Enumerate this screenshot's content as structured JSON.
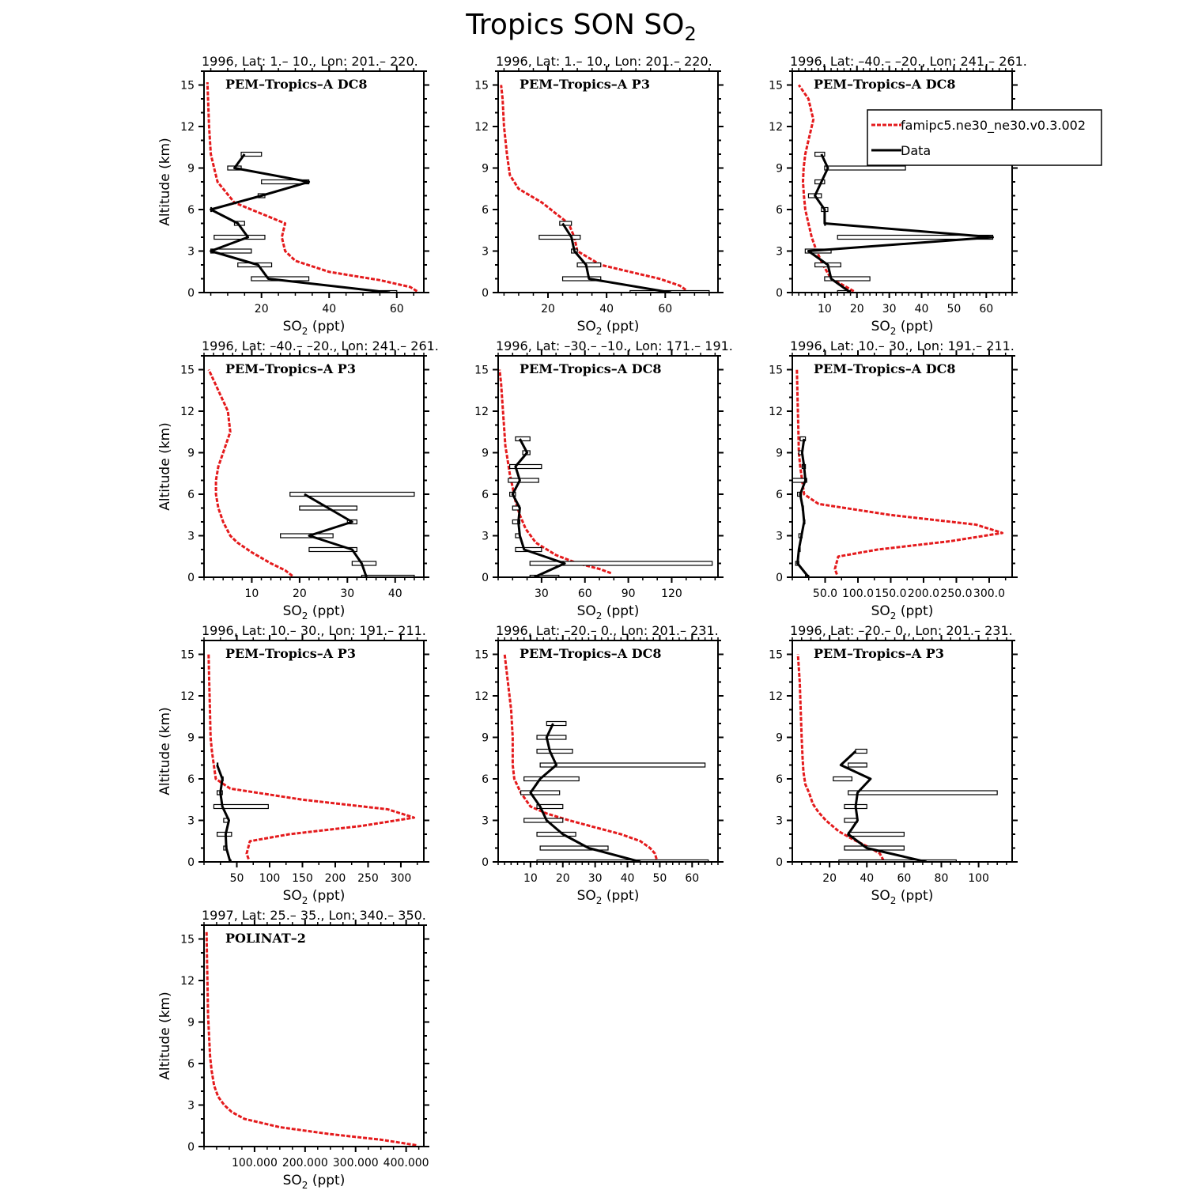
{
  "figure": {
    "title_main": "Tropics SON SO",
    "title_sub": "2",
    "ylabel": "Altitude (km)",
    "xlabel_main": "SO",
    "xlabel_sub": "2",
    "xlabel_unit": " (ppt)"
  },
  "legend": {
    "model_label": "famipc5.ne30_ne30.v0.3.002",
    "data_label": "Data",
    "model_color": "#e41a1c",
    "data_color": "#000000"
  },
  "chart_data": [
    {
      "type": "line",
      "title": "1996, Lat: 1.– 10., Lon: 201.– 220.",
      "campaign": "PEM–Tropics–A DC8",
      "xlim": [
        3,
        68
      ],
      "ylim": [
        0,
        16
      ],
      "xticks": [
        20,
        40,
        60
      ],
      "xticklabels": [
        "20",
        "40",
        "60"
      ],
      "xminor": 5,
      "model": {
        "x": [
          66,
          64,
          55,
          40,
          30,
          27,
          26,
          27,
          22,
          12,
          7,
          6,
          5,
          4.5,
          4.2,
          4
        ],
        "y": [
          0.1,
          0.4,
          0.9,
          1.5,
          2.3,
          3,
          4,
          5,
          5.5,
          6.5,
          8,
          9,
          10,
          12,
          14,
          15.2
        ]
      },
      "data": {
        "x": [
          58,
          22,
          19,
          5,
          16,
          13,
          5,
          20,
          34,
          12,
          15
        ],
        "y": [
          0,
          1,
          2,
          3,
          4,
          5,
          6,
          7,
          8,
          9,
          10
        ],
        "xmin": [
          55,
          17,
          13,
          5,
          6,
          12,
          5,
          19,
          20,
          10,
          14
        ],
        "xmax": [
          60,
          34,
          23,
          17,
          21,
          15,
          5,
          21,
          34,
          14,
          20
        ]
      }
    },
    {
      "type": "line",
      "title": "1996, Lat: 1.– 10., Lon: 201.– 220.",
      "campaign": "PEM–Tropics–A P3",
      "xlim": [
        3,
        78
      ],
      "ylim": [
        0,
        16
      ],
      "xticks": [
        20,
        40,
        60
      ],
      "xticklabels": [
        "20",
        "40",
        "60"
      ],
      "xminor": 5,
      "model": {
        "x": [
          67,
          65,
          58,
          48,
          38,
          30,
          29,
          27,
          24,
          18,
          10,
          7,
          6,
          5,
          4.5,
          4
        ],
        "y": [
          0.2,
          0.5,
          1,
          1.5,
          2,
          3,
          4,
          5,
          5.5,
          6.5,
          7.5,
          8.5,
          10,
          12,
          14,
          15
        ]
      },
      "data": {
        "x": [
          62,
          34,
          33,
          29,
          28,
          25
        ],
        "y": [
          0,
          1,
          2,
          3,
          4,
          5
        ],
        "xmin": [
          48,
          25,
          30,
          28,
          17,
          24
        ],
        "xmax": [
          75,
          38,
          38,
          30,
          31,
          28
        ]
      }
    },
    {
      "type": "line",
      "title": "1996, Lat: –40.– –20., Lon: 241.– 261.",
      "campaign": "PEM–Tropics–A DC8",
      "xlim": [
        0,
        68
      ],
      "ylim": [
        0,
        16
      ],
      "xticks": [
        10,
        20,
        30,
        40,
        50,
        60
      ],
      "xticklabels": [
        "10",
        "20",
        "30",
        "40",
        "50",
        "60"
      ],
      "xminor": 2,
      "model": {
        "x": [
          19,
          16,
          12,
          9.5,
          7.5,
          6,
          5,
          4,
          3.6,
          3.3,
          3.5,
          4,
          5,
          6.5,
          5,
          2
        ],
        "y": [
          0.1,
          0.5,
          1,
          2,
          3,
          4,
          5,
          6,
          7,
          8,
          9,
          10,
          11,
          12.5,
          14,
          15
        ]
      },
      "data": {
        "x": [
          18,
          12,
          11,
          5,
          62,
          10,
          10,
          7,
          9,
          11,
          9
        ],
        "y": [
          0,
          1,
          2,
          3,
          4,
          5,
          6,
          7,
          8,
          9,
          10
        ],
        "xmin": [
          14,
          10,
          7,
          4,
          14,
          10,
          9,
          5,
          7,
          10,
          7
        ],
        "xmax": [
          18,
          24,
          15,
          12,
          62,
          10,
          11,
          9,
          10,
          35,
          10
        ]
      }
    },
    {
      "type": "line",
      "title": "1996, Lat: –40.– –20., Lon: 241.– 261.",
      "campaign": "PEM–Tropics–A P3",
      "xlim": [
        0,
        46
      ],
      "ylim": [
        0,
        16
      ],
      "xticks": [
        10,
        20,
        30,
        40
      ],
      "xticklabels": [
        "10",
        "20",
        "30",
        "40"
      ],
      "xminor": 2,
      "model": {
        "x": [
          18.5,
          17,
          14,
          10,
          7,
          5.5,
          4,
          3,
          2.5,
          2.5,
          3,
          4,
          5.5,
          5,
          3,
          1
        ],
        "y": [
          0.1,
          0.5,
          1,
          1.8,
          2.5,
          3,
          4,
          5,
          6,
          7,
          8,
          9,
          10.5,
          12,
          13.5,
          15
        ]
      },
      "data": {
        "x": [
          34,
          33,
          31,
          22,
          31,
          26,
          21
        ],
        "y": [
          0,
          1,
          2,
          3,
          4,
          5,
          6
        ],
        "xmin": [
          33,
          31,
          22,
          16,
          30,
          20,
          18
        ],
        "xmax": [
          44,
          36,
          32,
          27,
          32,
          32,
          44
        ]
      }
    },
    {
      "type": "line",
      "title": "1996, Lat: –30.– –10., Lon: 171.– 191.",
      "campaign": "PEM–Tropics–A DC8",
      "xlim": [
        0,
        152
      ],
      "ylim": [
        0,
        16
      ],
      "xticks": [
        30,
        60,
        90,
        120
      ],
      "xticklabels": [
        "30",
        "60",
        "90",
        "120"
      ],
      "xminor": 10,
      "model": {
        "x": [
          78,
          70,
          55,
          40,
          26,
          19,
          15,
          12,
          10,
          8,
          6.5,
          5,
          4,
          3,
          2,
          1
        ],
        "y": [
          0.3,
          0.6,
          1,
          1.6,
          2.5,
          3.5,
          4.5,
          5.5,
          6.5,
          7.5,
          8.5,
          9.5,
          11,
          12.5,
          14,
          15
        ]
      },
      "data": {
        "x": [
          25,
          46,
          18,
          15,
          14,
          15,
          10,
          15,
          12,
          20,
          15
        ],
        "y": [
          0,
          1,
          2,
          3,
          4,
          5,
          6,
          7,
          8,
          9,
          10
        ],
        "xmin": [
          22,
          22,
          12,
          12,
          10,
          10,
          8,
          7,
          8,
          17,
          12
        ],
        "xmax": [
          42,
          148,
          30,
          15,
          15,
          15,
          12,
          28,
          30,
          22,
          22
        ]
      }
    },
    {
      "type": "line",
      "title": "1996, Lat: 10.– 30., Lon: 191.– 211.",
      "campaign": "PEM–Tropics–A DC8",
      "xlim": [
        0,
        335
      ],
      "ylim": [
        0,
        16
      ],
      "xticks": [
        50,
        100,
        150,
        200,
        250,
        300
      ],
      "xticklabels": [
        "50.0",
        "100.0",
        "150.0",
        "200.0",
        "250.0",
        "300.0"
      ],
      "xminor": 25,
      "model": {
        "x": [
          68,
          65,
          70,
          130,
          240,
          320,
          280,
          150,
          40,
          18,
          15,
          12,
          10,
          9,
          8,
          7
        ],
        "y": [
          0.2,
          0.6,
          1.5,
          2,
          2.6,
          3.2,
          3.8,
          4.5,
          5.3,
          6,
          7,
          8,
          9,
          11,
          13,
          15
        ]
      },
      "data": {
        "x": [
          25,
          8,
          10,
          14,
          18,
          16,
          12,
          20,
          18,
          15,
          18
        ],
        "y": [
          0,
          1,
          2,
          3,
          4,
          5,
          6,
          7,
          8,
          9,
          10
        ],
        "xmin": [
          20,
          5,
          10,
          10,
          18,
          15,
          8,
          0,
          15,
          10,
          12
        ],
        "xmax": [
          25,
          10,
          12,
          15,
          18,
          17,
          14,
          22,
          20,
          16,
          20
        ]
      }
    },
    {
      "type": "line",
      "title": "1996, Lat: 10.– 30., Lon: 191.– 211.",
      "campaign": "PEM–Tropics–A P3",
      "xlim": [
        0,
        335
      ],
      "ylim": [
        0,
        16
      ],
      "xticks": [
        50,
        100,
        150,
        200,
        250,
        300
      ],
      "xticklabels": [
        "50",
        "100",
        "150",
        "200",
        "250",
        "300"
      ],
      "xminor": 25,
      "model": {
        "x": [
          68,
          65,
          70,
          130,
          240,
          320,
          280,
          150,
          40,
          18,
          15,
          12,
          10,
          9,
          8,
          7
        ],
        "y": [
          0.2,
          0.6,
          1.5,
          2,
          2.6,
          3.2,
          3.8,
          4.5,
          5.3,
          6,
          7,
          8,
          9,
          11,
          13,
          15
        ]
      },
      "data": {
        "x": [
          40,
          34,
          33,
          38,
          28,
          25,
          28,
          20
        ],
        "y": [
          0,
          1,
          2,
          3,
          4,
          5,
          6,
          7
        ],
        "xmin": [
          40,
          30,
          20,
          30,
          15,
          20,
          28,
          20
        ],
        "xmax": [
          40,
          35,
          42,
          38,
          98,
          28,
          28,
          20
        ]
      }
    },
    {
      "type": "line",
      "title": "1996, Lat: –20.– 0., Lon: 201.– 231.",
      "campaign": "PEM–Tropics–A DC8",
      "xlim": [
        0,
        68
      ],
      "ylim": [
        0,
        16
      ],
      "xticks": [
        10,
        20,
        30,
        40,
        50,
        60
      ],
      "xticklabels": [
        "10",
        "20",
        "30",
        "40",
        "50",
        "60"
      ],
      "xminor": 2,
      "model": {
        "x": [
          49,
          48.5,
          47,
          44,
          38,
          30,
          22,
          15,
          10,
          7,
          5,
          4.5,
          4.5,
          4,
          3,
          2
        ],
        "y": [
          0.2,
          0.6,
          1,
          1.5,
          2,
          2.5,
          3,
          3.5,
          4,
          5,
          6,
          7,
          9,
          11,
          13,
          15
        ]
      },
      "data": {
        "x": [
          44,
          28,
          20,
          15,
          13,
          10,
          13,
          18,
          16,
          15,
          17
        ],
        "y": [
          0,
          1,
          2,
          3,
          4,
          5,
          6,
          7,
          8,
          9,
          10
        ],
        "xmin": [
          12,
          13,
          12,
          8,
          12,
          7,
          8,
          13,
          12,
          12,
          15
        ],
        "xmax": [
          65,
          34,
          24,
          20,
          20,
          19,
          25,
          64,
          23,
          21,
          21
        ]
      }
    },
    {
      "type": "line",
      "title": "1996, Lat: –20.– 0., Lon: 201.– 231.",
      "campaign": "PEM–Tropics–A P3",
      "xlim": [
        0,
        118
      ],
      "ylim": [
        0,
        16
      ],
      "xticks": [
        20,
        40,
        60,
        80,
        100
      ],
      "xticklabels": [
        "20",
        "40",
        "60",
        "80",
        "100"
      ],
      "xminor": 5,
      "model": {
        "x": [
          49,
          47,
          42,
          33,
          25,
          18,
          14,
          11,
          9,
          7,
          6,
          5.5,
          5,
          4.5,
          4,
          3
        ],
        "y": [
          0.1,
          0.6,
          1,
          1.6,
          2.2,
          3,
          3.6,
          4.2,
          5,
          5.6,
          6.5,
          7.5,
          9,
          11,
          13,
          15
        ]
      },
      "data": {
        "x": [
          72,
          40,
          30,
          35,
          34,
          35,
          42,
          26,
          34
        ],
        "y": [
          0,
          1,
          2,
          3,
          4,
          5,
          6,
          7,
          8
        ],
        "xmin": [
          25,
          28,
          30,
          28,
          28,
          30,
          22,
          30,
          34
        ],
        "xmax": [
          88,
          60,
          60,
          35,
          40,
          110,
          32,
          40,
          40
        ]
      }
    },
    {
      "type": "line",
      "title": "1997, Lat: 25.– 35., Lon: 340.– 350.",
      "campaign": "POLINAT–2",
      "xlim": [
        0,
        435
      ],
      "ylim": [
        0,
        16
      ],
      "xticks": [
        100,
        200,
        300,
        400
      ],
      "xticklabels": [
        "100.000",
        "200.000",
        "300.000",
        "400.000"
      ],
      "xminor": 25,
      "model": {
        "x": [
          420,
          350,
          250,
          150,
          80,
          55,
          40,
          28,
          20,
          15,
          12,
          10,
          8,
          7,
          6,
          5
        ],
        "y": [
          0.1,
          0.5,
          0.9,
          1.4,
          2,
          2.5,
          3,
          3.6,
          4.4,
          5.5,
          6.5,
          8,
          9.5,
          11.5,
          13.5,
          15.5
        ]
      },
      "data": {
        "x": [],
        "y": [],
        "xmin": [],
        "xmax": []
      }
    }
  ]
}
